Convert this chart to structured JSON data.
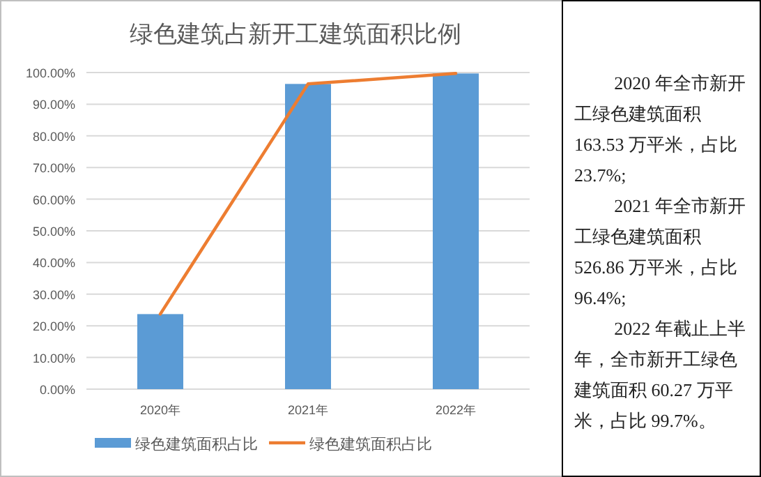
{
  "chart_data": {
    "type": "bar",
    "title": "绿色建筑占新开工建筑面积比例",
    "categories": [
      "2020年",
      "2021年",
      "2022年"
    ],
    "series": [
      {
        "name": "绿色建筑面积占比",
        "color": "#5b9bd5",
        "values": [
          23.7,
          96.4,
          99.7
        ]
      },
      {
        "name": "绿色建筑面积占比",
        "type": "line",
        "color": "#ed7d31",
        "values": [
          23.7,
          96.4,
          99.7
        ]
      }
    ],
    "ylim": [
      0,
      100
    ],
    "yticks": [
      {
        "value": 0,
        "label": "0.00%"
      },
      {
        "value": 10,
        "label": "10.00%"
      },
      {
        "value": 20,
        "label": "20.00%"
      },
      {
        "value": 30,
        "label": "30.00%"
      },
      {
        "value": 40,
        "label": "40.00%"
      },
      {
        "value": 50,
        "label": "50.00%"
      },
      {
        "value": 60,
        "label": "60.00%"
      },
      {
        "value": 70,
        "label": "70.00%"
      },
      {
        "value": 80,
        "label": "80.00%"
      },
      {
        "value": 90,
        "label": "90.00%"
      },
      {
        "value": 100,
        "label": "100.00%"
      }
    ],
    "grid": "y",
    "legend": "bottom",
    "marker": "none",
    "line_style": "solid",
    "annotations": [
      "2020 年全市新开工绿色建筑面积 163.53 万平米，占比 23.7%;",
      "2021 年全市新开工绿色建筑面积 526.86 万平米，占比 96.4%;",
      "2022 年截止上半年，全市新开工绿色建筑面积 60.27 万平米，占比 99.7%。"
    ]
  }
}
